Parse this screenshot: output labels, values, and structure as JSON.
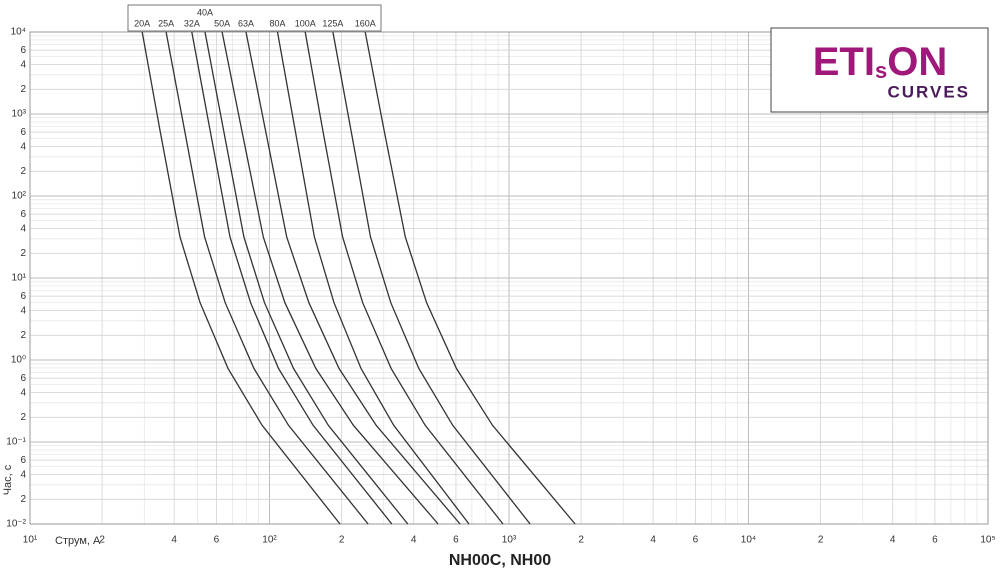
{
  "chart_data": {
    "type": "line",
    "title": "NH00C, NH00",
    "xlabel": "Струм, А",
    "ylabel": "Час, с",
    "xscale": "log",
    "yscale": "log",
    "grid": true,
    "minor_grid": true,
    "legend": "top",
    "xlim": [
      10,
      100000
    ],
    "ylim": [
      0.01,
      10000
    ],
    "xticks": [
      {
        "value": 10,
        "label": "10¹"
      },
      {
        "value": 20,
        "label": "2"
      },
      {
        "value": 40,
        "label": "4"
      },
      {
        "value": 60,
        "label": "6"
      },
      {
        "value": 100,
        "label": "10²"
      },
      {
        "value": 200,
        "label": "2"
      },
      {
        "value": 400,
        "label": "4"
      },
      {
        "value": 600,
        "label": "6"
      },
      {
        "value": 1000,
        "label": "10³"
      },
      {
        "value": 2000,
        "label": "2"
      },
      {
        "value": 4000,
        "label": "4"
      },
      {
        "value": 6000,
        "label": "6"
      },
      {
        "value": 10000,
        "label": "10⁴"
      },
      {
        "value": 20000,
        "label": "2"
      },
      {
        "value": 40000,
        "label": "4"
      },
      {
        "value": 60000,
        "label": "6"
      },
      {
        "value": 100000,
        "label": "10⁵"
      }
    ],
    "yticks": [
      {
        "value": 0.01,
        "label": "10⁻²"
      },
      {
        "value": 0.02,
        "label": "2"
      },
      {
        "value": 0.04,
        "label": "4"
      },
      {
        "value": 0.06,
        "label": "6"
      },
      {
        "value": 0.1,
        "label": "10⁻¹"
      },
      {
        "value": 0.2,
        "label": "2"
      },
      {
        "value": 0.4,
        "label": "4"
      },
      {
        "value": 0.6,
        "label": "6"
      },
      {
        "value": 1,
        "label": "10⁰"
      },
      2,
      4,
      6,
      {
        "value": 10,
        "label": "10¹"
      },
      {
        "value": 20,
        "label": "2"
      },
      {
        "value": 40,
        "label": "4"
      },
      {
        "value": 60,
        "label": "6"
      },
      {
        "value": 100,
        "label": "10²"
      },
      {
        "value": 200,
        "label": "2"
      },
      {
        "value": 400,
        "label": "4"
      },
      {
        "value": 600,
        "label": "6"
      },
      {
        "value": 1000,
        "label": "10³"
      },
      {
        "value": 2000,
        "label": "2"
      },
      {
        "value": 4000,
        "label": "4"
      },
      {
        "value": 6000,
        "label": "6"
      },
      {
        "value": 10000,
        "label": "10⁴"
      }
    ],
    "series": [
      {
        "name": "20A",
        "color": "#333333",
        "x": [
          29.4,
          34.9,
          42.3,
          51.3,
          67.1,
          93.1,
          197
        ],
        "values": [
          10000,
          631,
          31.6,
          5,
          0.79,
          0.16,
          0.01
        ]
      },
      {
        "name": "25A",
        "color": "#333333",
        "x": [
          37,
          44.2,
          53.6,
          65.3,
          86.1,
          120,
          258
        ],
        "values": [
          10000,
          631,
          31.6,
          5,
          0.79,
          0.16,
          0.01
        ]
      },
      {
        "name": "32A",
        "color": "#333333",
        "x": [
          47.4,
          56.5,
          68.4,
          83.4,
          109,
          152,
          324
        ],
        "values": [
          10000,
          631,
          31.6,
          5,
          0.79,
          0.16,
          0.01
        ]
      },
      {
        "name": "40A",
        "color": "#333333",
        "x": [
          53.8,
          64.3,
          78.2,
          95.3,
          126,
          176,
          378
        ],
        "values": [
          10000,
          631,
          31.6,
          5,
          0.79,
          0.16,
          0.01
        ]
      },
      {
        "name": "50A",
        "color": "#333333",
        "x": [
          63.4,
          76.6,
          94.2,
          116,
          156,
          224,
          506
        ],
        "values": [
          10000,
          631,
          31.6,
          5,
          0.79,
          0.16,
          0.01
        ]
      },
      {
        "name": "63A",
        "color": "#333333",
        "x": [
          79.8,
          96.2,
          118,
          146,
          195,
          279,
          625
        ],
        "values": [
          10000,
          631,
          31.6,
          5,
          0.79,
          0.16,
          0.01
        ]
      },
      {
        "name": "80A",
        "color": "#333333",
        "x": [
          108,
          128,
          154,
          186,
          241,
          330,
          681
        ],
        "values": [
          10000,
          631,
          31.6,
          5,
          0.79,
          0.16,
          0.01
        ]
      },
      {
        "name": "100A",
        "color": "#333333",
        "x": [
          141,
          167,
          202,
          245,
          322,
          447,
          944
        ],
        "values": [
          10000,
          631,
          31.6,
          5,
          0.79,
          0.16,
          0.01
        ]
      },
      {
        "name": "125A",
        "color": "#333333",
        "x": [
          184,
          219,
          264,
          321,
          420,
          582,
          1225
        ],
        "values": [
          10000,
          631,
          31.6,
          5,
          0.79,
          0.16,
          0.01
        ]
      },
      {
        "name": "160A",
        "color": "#333333",
        "x": [
          251,
          301,
          369,
          453,
          603,
          853,
          1888
        ],
        "values": [
          10000,
          631,
          31.6,
          5,
          0.79,
          0.16,
          0.01
        ]
      }
    ]
  },
  "logo": {
    "part_1": "ETI",
    "part_2": "s",
    "part_3": "ON",
    "subtitle": "CURVES"
  }
}
